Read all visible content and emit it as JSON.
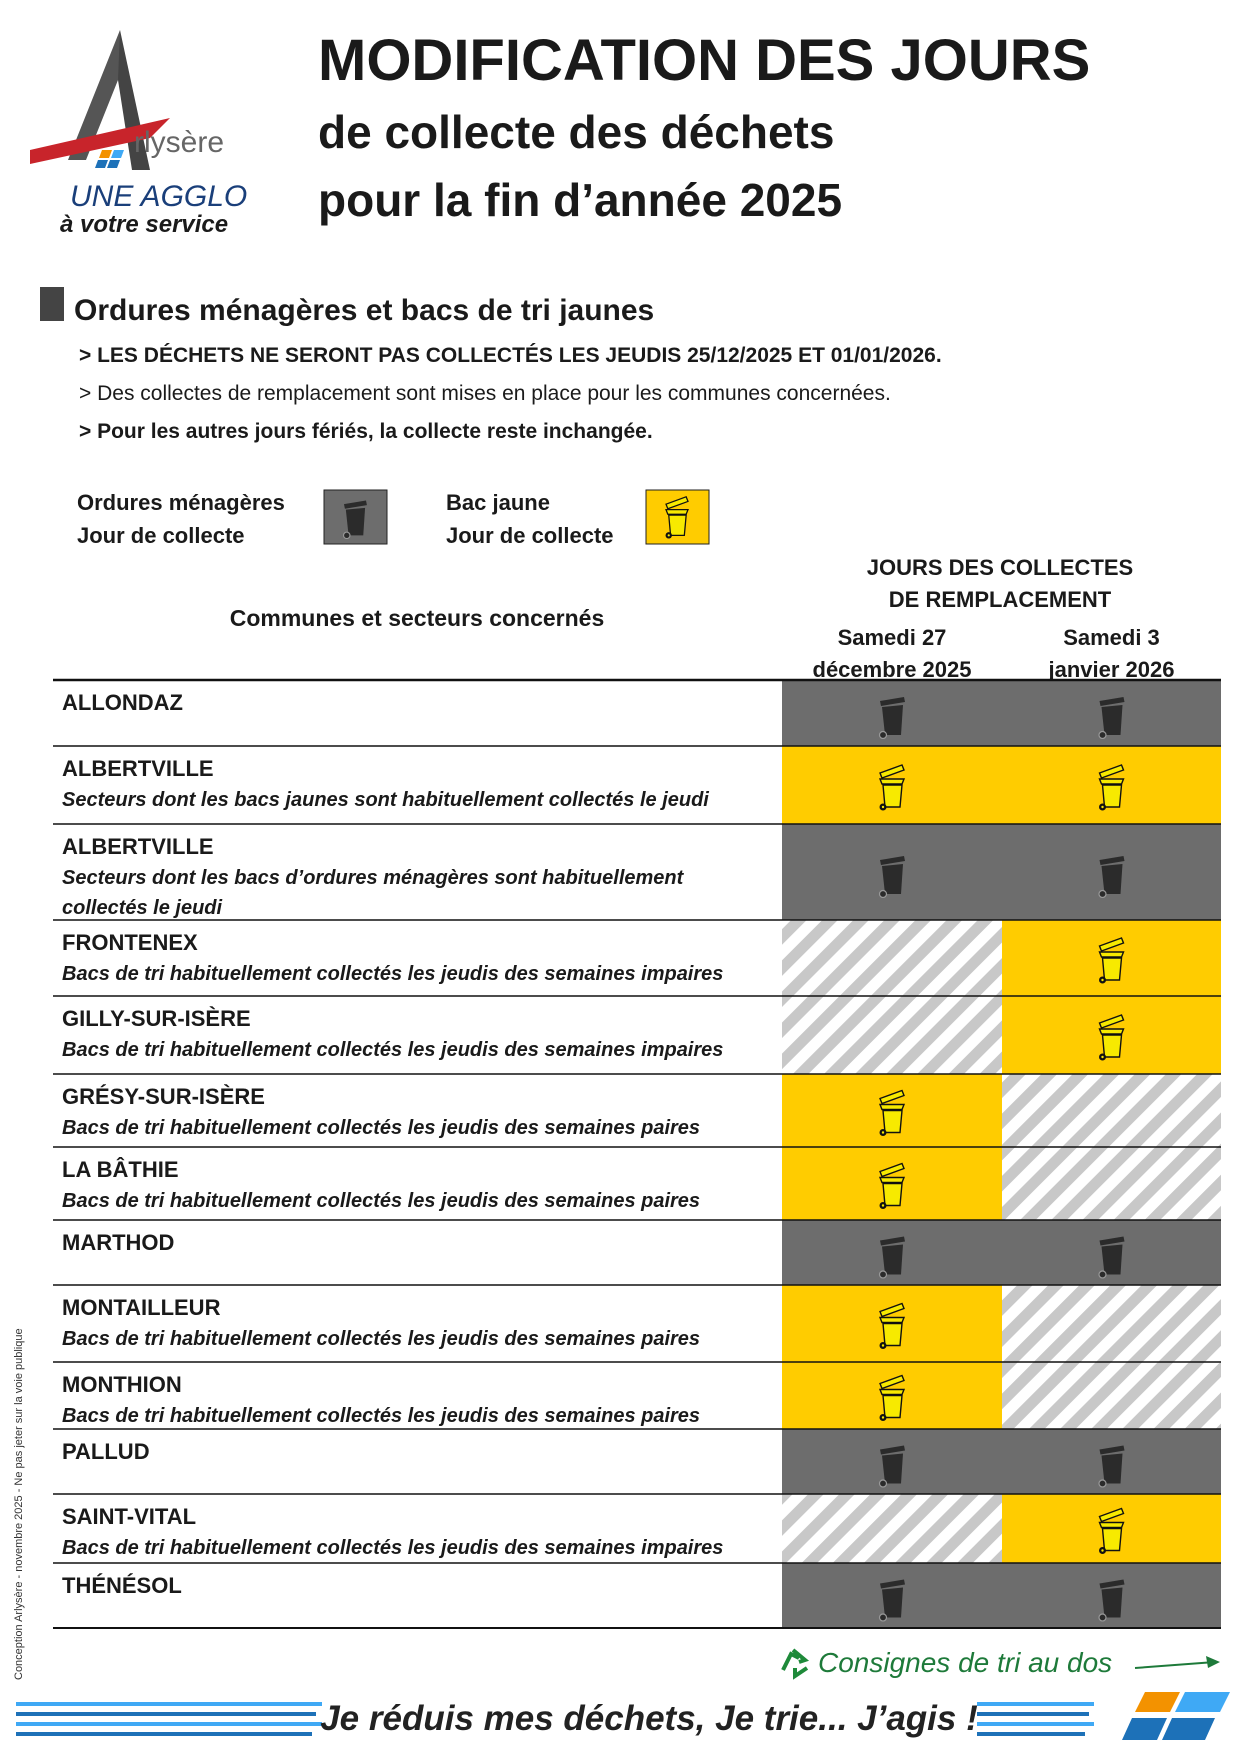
{
  "logo": {
    "brand": "rlysère",
    "line1": "UNE AGGLO",
    "line2": "à votre service"
  },
  "header": {
    "title": "MODIFICATION DES JOURS",
    "subtitle1": "de collecte des déchets",
    "subtitle2": "pour la fin d’année 2025"
  },
  "section": {
    "title": "Ordures ménagères et bacs de tri jaunes",
    "notes": [
      {
        "text": "> LES DÉCHETS NE SERONT PAS COLLECTÉS LES JEUDIS 25/12/2025 ET 01/01/2026.",
        "bold": true
      },
      {
        "text": "> Des collectes de remplacement sont mises en place pour les communes concernées.",
        "bold": false
      },
      {
        "text": "> Pour les autres jours fériés, la collecte reste inchangée.",
        "bold": true
      }
    ]
  },
  "legend": [
    {
      "label1": "Ordures ménagères",
      "label2": "Jour de collecte",
      "bin": "ordures"
    },
    {
      "label1": "Bac jaune",
      "label2": "Jour de collecte",
      "bin": "jaune"
    }
  ],
  "table": {
    "group_header": [
      "JOURS DES COLLECTES",
      "DE REMPLACEMENT"
    ],
    "communes_header": "Communes et secteurs concernés",
    "columns": [
      [
        "Samedi 27",
        "décembre 2025"
      ],
      [
        "Samedi 3",
        "janvier 2026"
      ]
    ],
    "rows": [
      {
        "commune": "ALLONDAZ",
        "detail": [],
        "cells": [
          "ordures",
          "ordures"
        ]
      },
      {
        "commune": "ALBERTVILLE",
        "detail": [
          "Secteurs dont les bacs jaunes sont habituellement collectés le jeudi"
        ],
        "cells": [
          "jaune",
          "jaune"
        ]
      },
      {
        "commune": "ALBERTVILLE",
        "detail": [
          "Secteurs dont les bacs d’ordures ménagères sont habituellement",
          "collectés le jeudi"
        ],
        "cells": [
          "ordures",
          "ordures"
        ]
      },
      {
        "commune": "FRONTENEX",
        "detail": [
          "Bacs de tri habituellement collectés les jeudis des semaines impaires"
        ],
        "cells": [
          null,
          "jaune"
        ]
      },
      {
        "commune": "GILLY-SUR-ISÈRE",
        "detail": [
          "Bacs de tri habituellement collectés les jeudis des semaines impaires"
        ],
        "cells": [
          null,
          "jaune"
        ]
      },
      {
        "commune": "GRÉSY-SUR-ISÈRE",
        "detail": [
          "Bacs de tri habituellement collectés les jeudis des semaines paires"
        ],
        "cells": [
          "jaune",
          null
        ]
      },
      {
        "commune": "LA BÂTHIE",
        "detail": [
          "Bacs de tri habituellement collectés les jeudis des semaines paires"
        ],
        "cells": [
          "jaune",
          null
        ]
      },
      {
        "commune": "MARTHOD",
        "detail": [],
        "cells": [
          "ordures",
          "ordures"
        ]
      },
      {
        "commune": "MONTAILLEUR",
        "detail": [
          "Bacs de tri habituellement collectés les jeudis des semaines paires"
        ],
        "cells": [
          "jaune",
          null
        ]
      },
      {
        "commune": "MONTHION",
        "detail": [
          "Bacs de tri habituellement collectés les jeudis des semaines paires"
        ],
        "cells": [
          "jaune",
          null
        ]
      },
      {
        "commune": "PALLUD",
        "detail": [],
        "cells": [
          "ordures",
          "ordures"
        ]
      },
      {
        "commune": "SAINT-VITAL",
        "detail": [
          "Bacs de tri habituellement collectés les jeudis des semaines impaires"
        ],
        "cells": [
          null,
          "jaune"
        ]
      },
      {
        "commune": "THÉNÉSOL",
        "detail": [],
        "cells": [
          "ordures",
          "ordures"
        ]
      }
    ]
  },
  "footer": {
    "consignes": "Consignes de tri au dos",
    "slogan": "Je réduis mes déchets, Je trie... J’agis !",
    "credit": "Conception Arlysère - novembre 2025 - Ne pas jeter sur la voie publique"
  }
}
